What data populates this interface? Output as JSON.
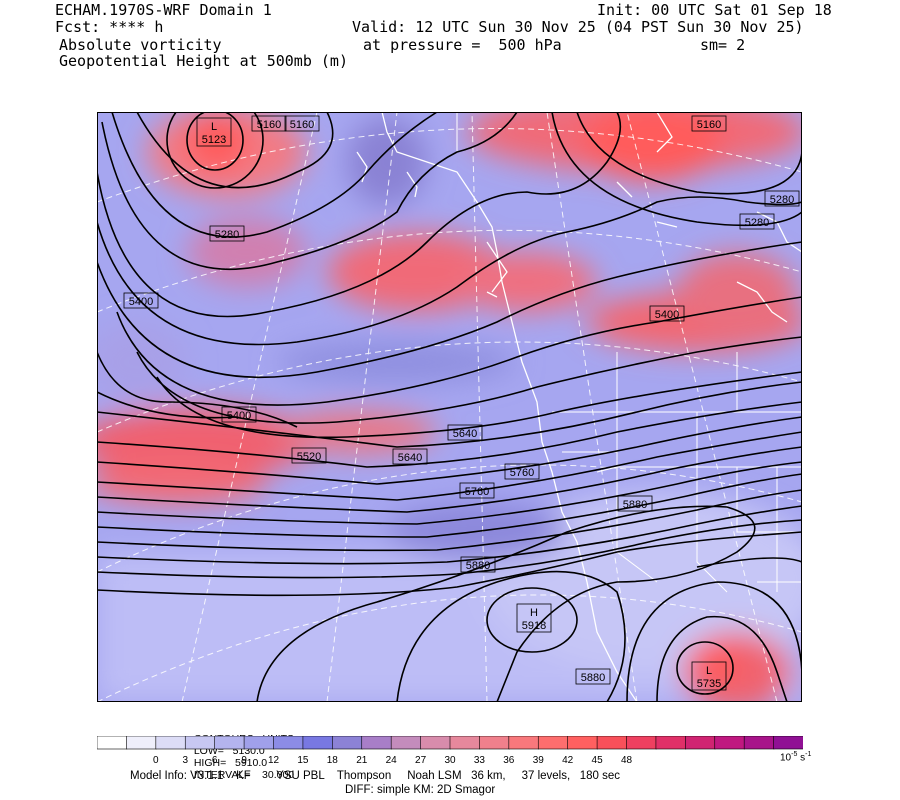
{
  "header": {
    "model": "ECHAM.1970S-WRF Domain 1",
    "fcst": "Fcst: **** h",
    "field1": "Absolute vorticity",
    "field2": "Geopotential Height at 500mb (m)",
    "init": "Init: 00 UTC Sat 01 Sep 18",
    "valid": "Valid: 12 UTC Sun 30 Nov 25 (04 PST Sun 30 Nov 25)",
    "pressure": "at pressure =  500 hPa",
    "smooth": "sm= 2"
  },
  "contour_info": {
    "units": "CONTOURS:  UNITS=m",
    "low": "LOW=   5130.0",
    "high": "HIGH=   5910.0",
    "interval": "INTERVAL=    30.000"
  },
  "colorbar": {
    "ticks": [
      "0",
      "3",
      "6",
      "9",
      "12",
      "15",
      "18",
      "21",
      "24",
      "27",
      "30",
      "33",
      "36",
      "39",
      "42",
      "45",
      "48"
    ],
    "unit_base": "10",
    "unit_exp": "-5",
    "unit_suffix": "s",
    "unit_suffix_exp": "-1",
    "colors": [
      "#ffffff",
      "#efeffb",
      "#dcdcf6",
      "#c8c8f2",
      "#b4b4ee",
      "#a0a0ea",
      "#8c8ce6",
      "#7878e2",
      "#8c82d6",
      "#a87ec8",
      "#c48cbc",
      "#d88cac",
      "#e6889c",
      "#f0808c",
      "#f8787c",
      "#fd6e6e",
      "#ff6060",
      "#f8505a",
      "#ee4060",
      "#e03068",
      "#d02472",
      "#c01880",
      "#a8148a",
      "#901094"
    ]
  },
  "contour_labels": [
    {
      "text": "5160"
    },
    {
      "text": "5160"
    },
    {
      "text": "5160"
    },
    {
      "text": "5280"
    },
    {
      "text": "5280"
    },
    {
      "text": "5280"
    },
    {
      "text": "5400"
    },
    {
      "text": "5400"
    },
    {
      "text": "5400"
    },
    {
      "text": "5520"
    },
    {
      "text": "5640"
    },
    {
      "text": "5640"
    },
    {
      "text": "5760"
    },
    {
      "text": "5760"
    },
    {
      "text": "5880"
    },
    {
      "text": "5880"
    },
    {
      "text": "5880"
    }
  ],
  "centers": [
    {
      "type": "L",
      "value": "5123"
    },
    {
      "type": "H",
      "value": "5918"
    },
    {
      "type": "L",
      "value": "5735"
    }
  ],
  "footer": {
    "line1": "Model Info: V3.1.1    KF        YSU PBL    Thompson     Noah LSM   36 km,     37 levels,   180 sec",
    "line2": "DIFF: simple KM: 2D Smagor"
  }
}
